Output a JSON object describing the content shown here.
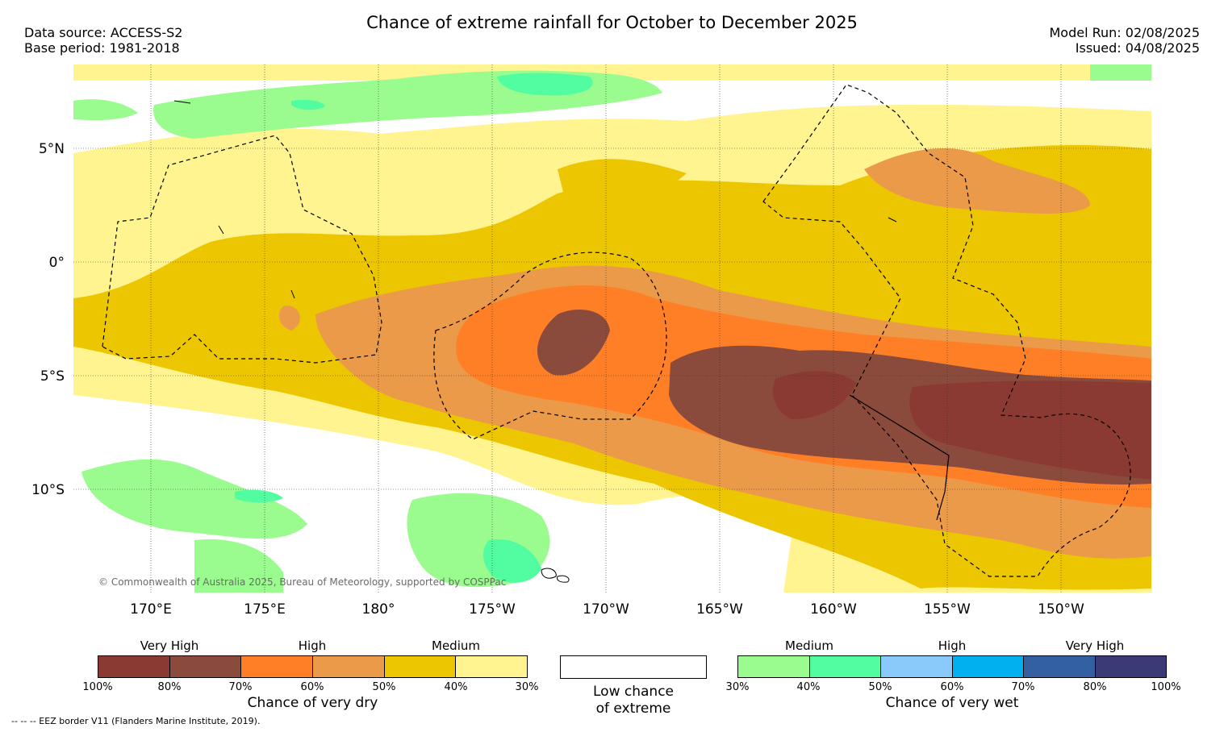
{
  "header": {
    "title": "Chance of extreme rainfall for October to December 2025",
    "data_source": "Data source: ACCESS-S2",
    "base_period": "Base period: 1981-2018",
    "model_run": "Model Run: 02/08/2025",
    "issued": "Issued: 04/08/2025"
  },
  "map": {
    "lat_labels": [
      "5°N",
      "0°",
      "5°S",
      "10°S"
    ],
    "lon_labels": [
      "170°E",
      "175°E",
      "180°",
      "175°W",
      "170°W",
      "165°W",
      "160°W",
      "155°W",
      "150°W"
    ],
    "copyright": "© Commonwealth of Australia 2025, Bureau of Meteorology, supported by COSPPac"
  },
  "legend": {
    "dry": {
      "headings": [
        "Very High",
        "High",
        "Medium"
      ],
      "ticks": [
        "100%",
        "80%",
        "70%",
        "60%",
        "50%",
        "40%",
        "30%"
      ],
      "colors": [
        "#8b3a33",
        "#8a4a3c",
        "#ff7f27",
        "#eb9a49",
        "#ecc600",
        "#fff48f"
      ],
      "title": "Chance of very dry"
    },
    "neutral": {
      "line1": "Low chance",
      "line2": "of extreme"
    },
    "wet": {
      "headings": [
        "Medium",
        "High",
        "Very High"
      ],
      "ticks": [
        "30%",
        "40%",
        "50%",
        "60%",
        "70%",
        "80%",
        "100%"
      ],
      "colors": [
        "#9afc8e",
        "#52fca0",
        "#89cafb",
        "#00b0ef",
        "#3360a0",
        "#3c3977"
      ],
      "title": "Chance of very wet"
    }
  },
  "footer": {
    "eez_note": "--  --  -- EEZ border V11 (Flanders Marine Institute, 2019)."
  }
}
